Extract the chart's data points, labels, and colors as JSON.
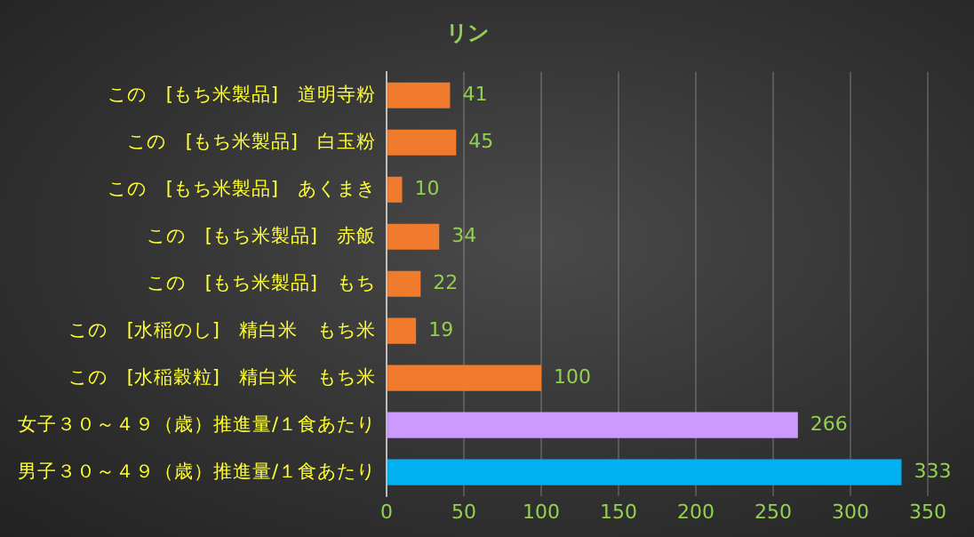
{
  "chart_data": {
    "type": "bar",
    "orientation": "horizontal",
    "title": "リン",
    "categories": [
      "この　[もち米製品]　道明寺粉",
      "この　[もち米製品]　白玉粉",
      "この　[もち米製品]　あくまき",
      "この　[もち米製品]　赤飯",
      "この　[もち米製品]　もち",
      "この　[水稲のし]　精白米　もち米",
      "この　[水稲穀粒]　精白米　もち米",
      "女子３０～４９（歳）推進量/１食あたり",
      "男子３０～４９（歳）推進量/１食あたり"
    ],
    "values": [
      41,
      45,
      10,
      34,
      22,
      19,
      100,
      266,
      333
    ],
    "colors": [
      "#f07b2c",
      "#f07b2c",
      "#f07b2c",
      "#f07b2c",
      "#f07b2c",
      "#f07b2c",
      "#f07b2c",
      "#cc99ff",
      "#00b0f0"
    ],
    "xlim": [
      0,
      350
    ],
    "xticks": [
      0,
      50,
      100,
      150,
      200,
      250,
      300,
      350
    ],
    "grid": "x",
    "data_labels": true,
    "legend": false
  }
}
